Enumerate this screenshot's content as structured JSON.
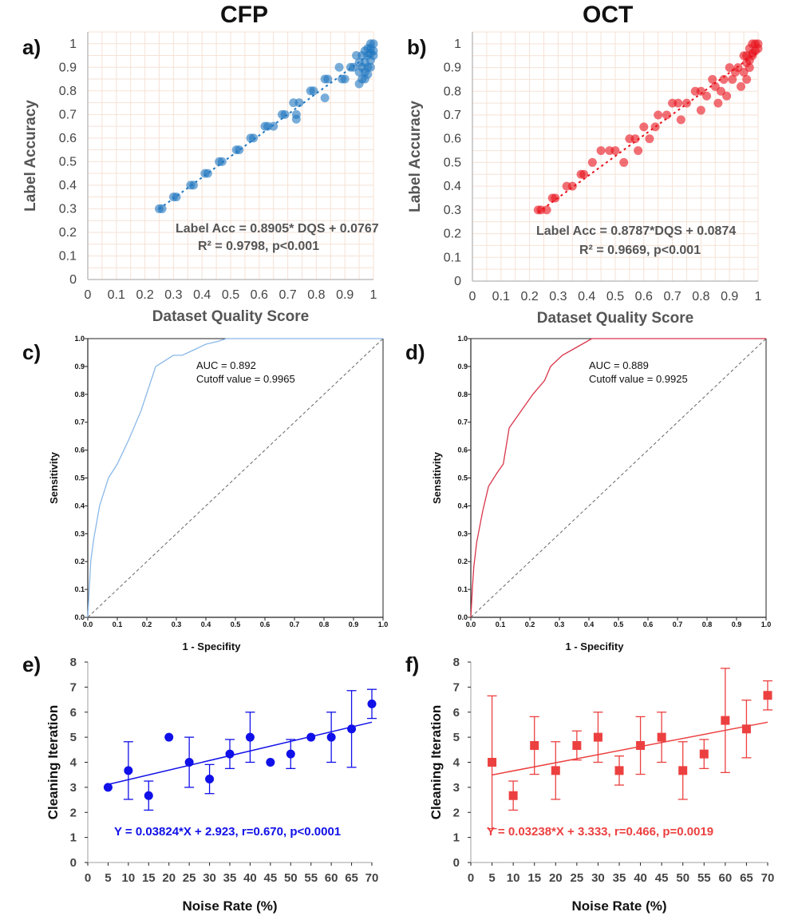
{
  "column_titles": [
    "CFP",
    "OCT"
  ],
  "chart_data": [
    {
      "panel": "a)",
      "type": "scatter",
      "xlabel": "Dataset Quality Score",
      "ylabel": "Label Accuracy",
      "xlim": [
        0,
        1.0
      ],
      "ylim": [
        0,
        1.05
      ],
      "xticks": [
        "0",
        "0.1",
        "0.2",
        "0.3",
        "0.4",
        "0.5",
        "0.6",
        "0.7",
        "0.8",
        "0.9",
        "1"
      ],
      "yticks": [
        "0",
        "0.1",
        "0.2",
        "0.3",
        "0.4",
        "0.5",
        "0.6",
        "0.7",
        "0.8",
        "0.9",
        "1"
      ],
      "grid": true,
      "color": "#1f77c0",
      "annotation": [
        "Label Acc = 0.8905* DQS + 0.0767",
        "R² = 0.9798, p<0.001"
      ],
      "fit": {
        "slope": 0.8905,
        "intercept": 0.0767,
        "x_range": [
          0.25,
          1.0
        ]
      },
      "points": {
        "x": [
          0.25,
          0.26,
          0.3,
          0.31,
          0.36,
          0.37,
          0.41,
          0.42,
          0.46,
          0.47,
          0.52,
          0.53,
          0.57,
          0.58,
          0.62,
          0.63,
          0.65,
          0.68,
          0.69,
          0.72,
          0.73,
          0.73,
          0.74,
          0.78,
          0.79,
          0.83,
          0.84,
          0.83,
          0.88,
          0.89,
          0.9,
          0.92,
          0.93,
          0.94,
          0.95,
          0.95,
          0.96,
          0.96,
          0.97,
          0.97,
          0.97,
          0.98,
          0.98,
          0.98,
          0.99,
          0.99,
          0.99,
          0.99,
          1.0,
          1.0,
          1.0,
          0.97,
          0.98,
          0.96,
          0.95,
          0.99
        ],
        "y": [
          0.3,
          0.3,
          0.35,
          0.35,
          0.4,
          0.4,
          0.45,
          0.45,
          0.5,
          0.5,
          0.55,
          0.55,
          0.6,
          0.6,
          0.65,
          0.65,
          0.65,
          0.7,
          0.7,
          0.75,
          0.7,
          0.68,
          0.75,
          0.8,
          0.8,
          0.85,
          0.85,
          0.77,
          0.9,
          0.85,
          0.85,
          0.9,
          0.9,
          0.95,
          0.88,
          0.92,
          0.9,
          0.95,
          0.92,
          0.97,
          0.88,
          0.95,
          0.98,
          0.9,
          0.96,
          1.0,
          0.93,
          0.98,
          1.0,
          0.97,
          0.95,
          0.85,
          0.87,
          0.85,
          0.83,
          0.9
        ]
      }
    },
    {
      "panel": "b)",
      "type": "scatter",
      "xlabel": "Dataset Quality Score",
      "ylabel": "Label Accuracy",
      "xlim": [
        0,
        1.0
      ],
      "ylim": [
        0,
        1.05
      ],
      "xticks": [
        "0",
        "0.1",
        "0.2",
        "0.3",
        "0.4",
        "0.5",
        "0.6",
        "0.7",
        "0.8",
        "0.9",
        "1"
      ],
      "yticks": [
        "0",
        "0.1",
        "0.2",
        "0.3",
        "0.4",
        "0.5",
        "0.6",
        "0.7",
        "0.8",
        "0.9",
        "1"
      ],
      "grid": true,
      "color": "#e8101a",
      "annotation": [
        "Label Acc = 0.8787*DQS + 0.0874",
        "R² = 0.9669, p<0.001"
      ],
      "fit": {
        "slope": 0.8787,
        "intercept": 0.0874,
        "x_range": [
          0.23,
          1.0
        ]
      },
      "points": {
        "x": [
          0.23,
          0.24,
          0.26,
          0.28,
          0.29,
          0.33,
          0.35,
          0.38,
          0.39,
          0.42,
          0.45,
          0.48,
          0.5,
          0.53,
          0.55,
          0.57,
          0.58,
          0.6,
          0.62,
          0.64,
          0.65,
          0.68,
          0.7,
          0.72,
          0.73,
          0.75,
          0.78,
          0.8,
          0.8,
          0.82,
          0.84,
          0.85,
          0.86,
          0.87,
          0.88,
          0.89,
          0.9,
          0.91,
          0.92,
          0.93,
          0.94,
          0.95,
          0.95,
          0.96,
          0.96,
          0.97,
          0.97,
          0.98,
          0.98,
          0.99,
          0.99,
          1.0,
          1.0,
          0.97,
          0.98,
          0.96
        ],
        "y": [
          0.3,
          0.3,
          0.3,
          0.35,
          0.35,
          0.4,
          0.4,
          0.45,
          0.45,
          0.5,
          0.55,
          0.55,
          0.55,
          0.5,
          0.6,
          0.6,
          0.55,
          0.65,
          0.6,
          0.65,
          0.7,
          0.7,
          0.75,
          0.75,
          0.68,
          0.75,
          0.8,
          0.8,
          0.72,
          0.78,
          0.85,
          0.82,
          0.75,
          0.8,
          0.85,
          0.78,
          0.9,
          0.85,
          0.88,
          0.9,
          0.82,
          0.95,
          0.88,
          0.92,
          0.95,
          0.98,
          0.9,
          0.95,
          1.0,
          0.97,
          1.0,
          1.0,
          0.98,
          0.93,
          0.96,
          0.85
        ]
      }
    },
    {
      "panel": "c)",
      "type": "line",
      "xlabel": "1 - Specifity",
      "ylabel": "Sensitivity",
      "xlim": [
        0,
        1.0
      ],
      "ylim": [
        0,
        1.0
      ],
      "xticks": [
        "0.0",
        "0.1",
        "0.2",
        "0.3",
        "0.4",
        "0.5",
        "0.6",
        "0.7",
        "0.8",
        "0.9",
        "1.0"
      ],
      "yticks": [
        "0.0",
        "0.1",
        "0.2",
        "0.3",
        "0.4",
        "0.5",
        "0.6",
        "0.7",
        "0.8",
        "0.9",
        "1.0"
      ],
      "color": "#8ab8e8",
      "annotation": [
        "AUC = 0.892",
        "Cutoff value = 0.9965"
      ],
      "roc": {
        "x": [
          0,
          0.005,
          0.01,
          0.02,
          0.04,
          0.07,
          0.1,
          0.14,
          0.18,
          0.23,
          0.26,
          0.29,
          0.32,
          0.36,
          0.4,
          0.44,
          0.47,
          0.6,
          1.0
        ],
        "y": [
          0,
          0.1,
          0.2,
          0.28,
          0.4,
          0.5,
          0.55,
          0.64,
          0.74,
          0.9,
          0.92,
          0.94,
          0.94,
          0.96,
          0.98,
          0.99,
          1.0,
          1.0,
          1.0
        ]
      }
    },
    {
      "panel": "d)",
      "type": "line",
      "xlabel": "1 - Specifity",
      "ylabel": "Sensitivity",
      "xlim": [
        0,
        1.0
      ],
      "ylim": [
        0,
        1.0
      ],
      "xticks": [
        "0.0",
        "0.1",
        "0.2",
        "0.3",
        "0.4",
        "0.5",
        "0.6",
        "0.7",
        "0.8",
        "0.9",
        "1.0"
      ],
      "yticks": [
        "0.0",
        "0.1",
        "0.2",
        "0.3",
        "0.4",
        "0.5",
        "0.6",
        "0.7",
        "0.8",
        "0.9",
        "1.0"
      ],
      "color": "#d8354a",
      "annotation": [
        "AUC = 0.889",
        "Cutoff value = 0.9925"
      ],
      "roc": {
        "x": [
          0,
          0.005,
          0.01,
          0.02,
          0.04,
          0.06,
          0.09,
          0.11,
          0.13,
          0.17,
          0.21,
          0.25,
          0.27,
          0.31,
          0.36,
          0.41,
          0.6,
          1.0
        ],
        "y": [
          0,
          0.1,
          0.18,
          0.27,
          0.38,
          0.47,
          0.52,
          0.55,
          0.68,
          0.74,
          0.8,
          0.85,
          0.9,
          0.94,
          0.97,
          1.0,
          1.0,
          1.0
        ]
      }
    },
    {
      "panel": "e)",
      "type": "scatter",
      "marker": "circle",
      "xlabel": "Noise Rate (%)",
      "ylabel": "Cleaning Iteration",
      "xlim": [
        0,
        70
      ],
      "ylim": [
        0,
        8
      ],
      "xticks": [
        "0",
        "5",
        "10",
        "15",
        "20",
        "25",
        "30",
        "35",
        "40",
        "45",
        "50",
        "55",
        "60",
        "65",
        "70"
      ],
      "yticks": [
        "0",
        "1",
        "2",
        "3",
        "4",
        "5",
        "6",
        "7",
        "8"
      ],
      "color": "#1010e8",
      "annotation": [
        "Y = 0.03824*X + 2.923, r=0.670, p<0.0001"
      ],
      "fit": {
        "slope": 0.03824,
        "intercept": 2.923,
        "x_range": [
          5,
          70
        ]
      },
      "points": {
        "x": [
          5,
          10,
          15,
          20,
          25,
          30,
          35,
          40,
          45,
          50,
          55,
          60,
          65,
          70
        ],
        "y": [
          3.0,
          3.67,
          2.67,
          5.0,
          4.0,
          3.33,
          4.33,
          5.0,
          4.0,
          4.33,
          5.0,
          5.0,
          5.33,
          6.33
        ],
        "err": [
          0,
          1.15,
          0.58,
          0,
          1.0,
          0.58,
          0.58,
          1.0,
          0,
          0.58,
          0,
          1.0,
          1.53,
          0.58
        ]
      }
    },
    {
      "panel": "f)",
      "type": "scatter",
      "marker": "square",
      "xlabel": "Noise Rate (%)",
      "ylabel": "Cleaning Iteration",
      "xlim": [
        0,
        70
      ],
      "ylim": [
        0,
        8
      ],
      "xticks": [
        "0",
        "5",
        "10",
        "15",
        "20",
        "25",
        "30",
        "35",
        "40",
        "45",
        "50",
        "55",
        "60",
        "65",
        "70"
      ],
      "yticks": [
        "0",
        "1",
        "2",
        "3",
        "4",
        "5",
        "6",
        "7",
        "8"
      ],
      "color": "#ec4040",
      "annotation": [
        "Y = 0.03238*X + 3.333, r=0.466, p=0.0019"
      ],
      "fit": {
        "slope": 0.03238,
        "intercept": 3.333,
        "x_range": [
          5,
          70
        ]
      },
      "points": {
        "x": [
          5,
          10,
          15,
          20,
          25,
          30,
          35,
          40,
          45,
          50,
          55,
          60,
          65,
          70
        ],
        "y": [
          4.0,
          2.67,
          4.67,
          3.67,
          4.67,
          5.0,
          3.67,
          4.67,
          5.0,
          3.67,
          4.33,
          5.67,
          5.33,
          6.67
        ],
        "err": [
          2.65,
          0.58,
          1.15,
          1.15,
          0.58,
          1.0,
          0.58,
          1.15,
          1.0,
          1.15,
          0.58,
          2.08,
          1.15,
          0.58
        ]
      }
    }
  ]
}
